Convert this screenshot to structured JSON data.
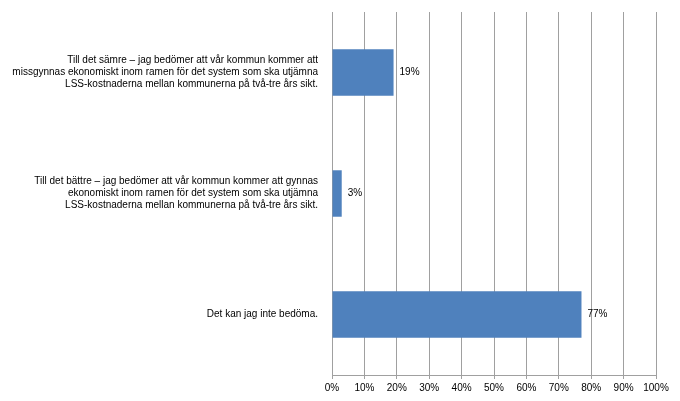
{
  "chart_data": {
    "type": "bar",
    "orientation": "horizontal",
    "categories": [
      "Till det sämre – jag bedömer att vår kommun kommer att missgynnas ekonomiskt inom ramen för det system som ska utjämna LSS-kostnaderna mellan kommunerna på två-tre års sikt.",
      "Till det bättre – jag bedömer att vår kommun kommer att gynnas ekonomiskt inom ramen för det system som ska utjämna LSS-kostnaderna mellan kommunerna på två-tre års sikt.",
      "Det kan jag inte bedöma."
    ],
    "values": [
      19,
      3,
      77
    ],
    "value_labels": [
      "19%",
      "3%",
      "77%"
    ],
    "data_labels": true,
    "color": "#4f81bd",
    "xlim": [
      0,
      100
    ],
    "xticks": [
      {
        "value": 0,
        "label": "0%"
      },
      {
        "value": 10,
        "label": "10%"
      },
      {
        "value": 20,
        "label": "20%"
      },
      {
        "value": 30,
        "label": "30%"
      },
      {
        "value": 40,
        "label": "40%"
      },
      {
        "value": 50,
        "label": "50%"
      },
      {
        "value": 60,
        "label": "60%"
      },
      {
        "value": 70,
        "label": "70%"
      },
      {
        "value": 80,
        "label": "80%"
      },
      {
        "value": 90,
        "label": "90%"
      },
      {
        "value": 100,
        "label": "100%"
      }
    ],
    "grid": true
  }
}
